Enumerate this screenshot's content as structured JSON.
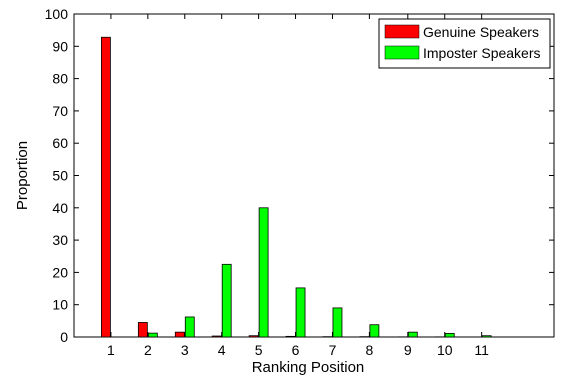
{
  "chart_data": {
    "type": "bar",
    "xlabel": "Ranking Position",
    "ylabel": "Proportion",
    "categories": [
      "1",
      "2",
      "3",
      "4",
      "5",
      "6",
      "7",
      "8",
      "9",
      "10",
      "11"
    ],
    "ylim": [
      0,
      100
    ],
    "yticks": [
      0,
      10,
      20,
      30,
      40,
      50,
      60,
      70,
      80,
      90,
      100
    ],
    "grid": false,
    "legend_position": "top-right",
    "series": [
      {
        "name": "Genuine Speakers",
        "color": "#ff0000",
        "values": [
          92.8,
          4.5,
          1.5,
          0.3,
          0.4,
          0.2,
          0.1,
          0.1,
          0.05,
          0.05,
          0.0
        ]
      },
      {
        "name": "Imposter Speakers",
        "color": "#00ff00",
        "values": [
          0.0,
          1.2,
          6.2,
          22.5,
          40.0,
          15.2,
          9.0,
          3.8,
          1.5,
          1.1,
          0.4
        ]
      }
    ]
  }
}
